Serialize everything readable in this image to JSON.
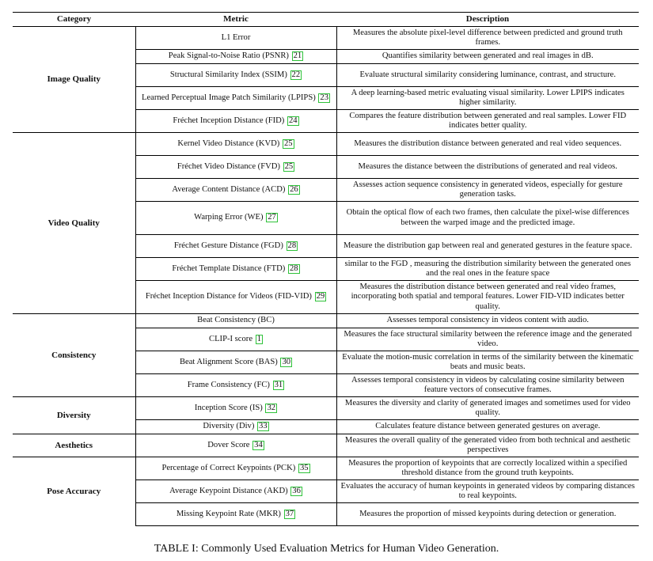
{
  "headers": {
    "category": "Category",
    "metric": "Metric",
    "description": "Description"
  },
  "groups": [
    {
      "category": "Image Quality",
      "rows": [
        {
          "metric": "L1 Error",
          "cite": "",
          "description": "Measures the absolute pixel-level difference between predicted and ground truth frames."
        },
        {
          "metric": "Peak Signal-to-Noise Ratio (PSNR)",
          "cite": "21",
          "description": "Quantifies similarity between generated and real images in dB."
        },
        {
          "metric": "Structural Similarity Index (SSIM)",
          "cite": "22",
          "description": "Evaluate structural similarity considering luminance, contrast, and structure."
        },
        {
          "metric": "Learned Perceptual Image Patch Similarity (LPIPS)",
          "cite": "23",
          "description": "A deep learning-based metric evaluating visual similarity. Lower LPIPS indicates higher similarity."
        },
        {
          "metric": "Fréchet Inception Distance (FID)",
          "cite": "24",
          "description": "Compares the feature distribution between generated and real samples. Lower FID indicates better quality."
        }
      ]
    },
    {
      "category": "Video Quality",
      "rows": [
        {
          "metric": "Kernel Video Distance (KVD)",
          "cite": "25",
          "description": "Measures the distribution distance between generated and real video sequences."
        },
        {
          "metric": "Fréchet Video Distance (FVD)",
          "cite": "25",
          "description": "Measures the distance between the distributions of generated and real videos."
        },
        {
          "metric": "Average Content Distance (ACD)",
          "cite": "26",
          "description": "Assesses action sequence consistency in generated videos, especially for gesture generation tasks."
        },
        {
          "metric": "Warping Error (WE)",
          "cite": "27",
          "description": "Obtain the optical flow of each two frames, then calculate the pixel-wise differences between the warped image and the predicted image."
        },
        {
          "metric": "Fréchet Gesture Distance (FGD)",
          "cite": "28",
          "description": "Measure the distribution gap between real and generated gestures in the feature space."
        },
        {
          "metric": "Fréchet Template Distance (FTD)",
          "cite": "28",
          "description": "similar to the FGD , measuring the distribution similarity between the generated ones and the real ones in the feature space"
        },
        {
          "metric": "Fréchet Inception Distance for Videos (FID-VID)",
          "cite": "29",
          "description": "Measures the distribution distance between generated and real video frames, incorporating both spatial and temporal features. Lower FID-VID indicates better quality."
        }
      ]
    },
    {
      "category": "Consistency",
      "rows": [
        {
          "metric": "Beat Consistency (BC)",
          "cite": "",
          "description": "Assesses temporal consistency in videos content with audio."
        },
        {
          "metric": "CLIP-I score",
          "cite": "1",
          "description": "Measures the face structural similarity between the reference image and the generated video."
        },
        {
          "metric": "Beat Alignment Score (BAS)",
          "cite": "30",
          "description": "Evaluate the motion-music correlation in terms of the similarity between the kinematic beats and music beats."
        },
        {
          "metric": "Frame Consistency (FC)",
          "cite": "31",
          "description": "Assesses temporal consistency in videos by calculating cosine similarity between feature vectors of consecutive frames."
        }
      ]
    },
    {
      "category": "Diversity",
      "rows": [
        {
          "metric": "Inception Score (IS)",
          "cite": "32",
          "description": "Measures the diversity and clarity of generated images and sometimes used for video quality."
        },
        {
          "metric": "Diversity (Div)",
          "cite": "33",
          "description": "Calculates feature distance between generated gestures on average."
        }
      ]
    },
    {
      "category": "Aesthetics",
      "rows": [
        {
          "metric": "Dover Score",
          "cite": "34",
          "description": "Measures the overall quality of the generated video from both technical and aesthetic perspectives"
        }
      ]
    },
    {
      "category": "Pose Accuracy",
      "rows": [
        {
          "metric": "Percentage of Correct Keypoints (PCK)",
          "cite": "35",
          "description": "Measures the proportion of keypoints that are correctly localized within a specified threshold distance from the ground truth keypoints."
        },
        {
          "metric": "Average Keypoint Distance (AKD)",
          "cite": "36",
          "description": "Evaluates the accuracy of human keypoints in generated videos by comparing distances to real keypoints."
        },
        {
          "metric": "Missing Keypoint Rate (MKR)",
          "cite": "37",
          "description": "Measures the proportion of missed keypoints during detection or generation."
        }
      ]
    }
  ],
  "caption": "TABLE I: Commonly Used Evaluation Metrics for Human Video Generation."
}
